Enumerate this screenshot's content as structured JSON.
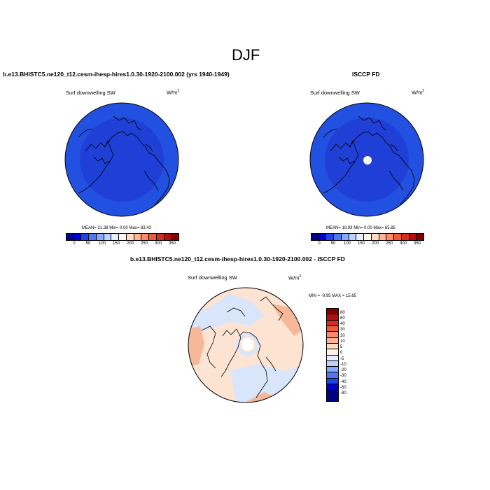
{
  "main_title": "DJF",
  "panel_left": {
    "case_title": "b.e13.BHISTC5.ne120_t12.cesm-ihesp-hires1.0.30-1920-2100.002 (yrs 1940-1949)",
    "variable": "Surf downwelling SW",
    "units": "W/m",
    "units_sup": "2",
    "stats": "MEAN= 21.38  Min= 0.00  Max= 83.43"
  },
  "panel_right": {
    "case_title": "ISCCP FD",
    "variable": "Surf downwelling SW",
    "units": "W/m",
    "units_sup": "2",
    "stats": "MEAN= 19.93  Min= 0.00  Max= 65.85"
  },
  "panel_diff": {
    "case_title": "b.e13.BHISTC5.ne120_t12.cesm-ihesp-hires1.0.30-1920-2100.002 - ISCCP FD",
    "variable": "Surf downwelling SW",
    "units": "W/m",
    "units_sup": "2",
    "stats": "MIN = -9.95 MAX = 15.65"
  },
  "colorbar_abs": {
    "labels": [
      "0",
      "50",
      "100",
      "150",
      "200",
      "250",
      "300",
      "350"
    ],
    "colors": [
      "#00008b",
      "#0000cd",
      "#1e46e6",
      "#4f78f0",
      "#87a9ff",
      "#bcd2ff",
      "#e6efff",
      "#fff8ef",
      "#ffdcc3",
      "#ffb497",
      "#ff8866",
      "#ef5a3c",
      "#d72d1e",
      "#b40f0f",
      "#800000"
    ]
  },
  "colorbar_diff": {
    "labels": [
      "80",
      "60",
      "40",
      "30",
      "20",
      "10",
      "5",
      "0",
      "-5",
      "-10",
      "-20",
      "-30",
      "-40",
      "-60",
      "-80"
    ],
    "colors": [
      "#800000",
      "#b40f0f",
      "#d72d1e",
      "#ef5a3c",
      "#ff8866",
      "#ffb497",
      "#ffdcc3",
      "#fff3e8",
      "#e6efff",
      "#bcd2ff",
      "#87a9ff",
      "#4f78f0",
      "#1e46e6",
      "#0000cd",
      "#00008b",
      "#000080"
    ]
  },
  "map_colors": {
    "abs_base": "#2250e0",
    "abs_inner": "#1f3fd6",
    "diff_base": "#fde3d2",
    "diff_warm": "#f7b89a",
    "diff_cool": "#d8e5fb"
  }
}
